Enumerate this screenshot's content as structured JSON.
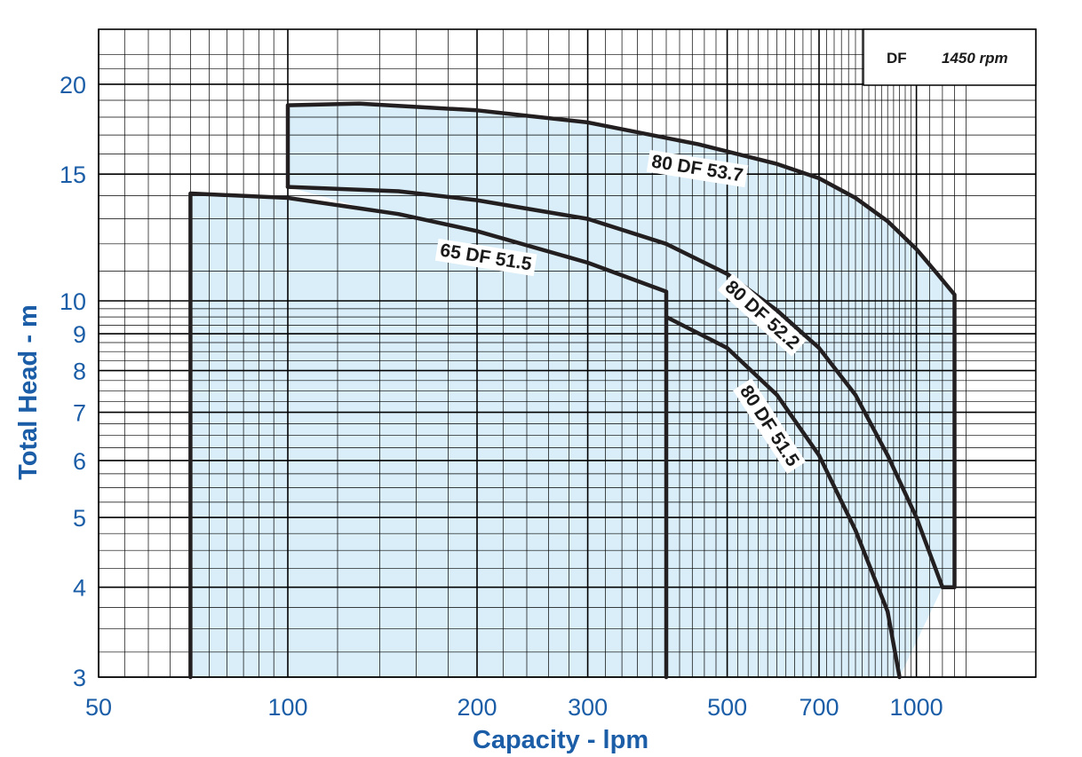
{
  "chart_data": {
    "type": "area",
    "xlabel": "Capacity - lpm",
    "ylabel": "Total Head - m",
    "x_scale": "log",
    "y_scale": "log",
    "xlim": [
      50,
      1200
    ],
    "ylim": [
      3,
      22
    ],
    "x_ticks": [
      {
        "v": 50,
        "label": "50"
      },
      {
        "v": 100,
        "label": "100"
      },
      {
        "v": 200,
        "label": "200"
      },
      {
        "v": 300,
        "label": "300"
      },
      {
        "v": 500,
        "label": "500"
      },
      {
        "v": 700,
        "label": "700"
      },
      {
        "v": 1000,
        "label": "1000"
      }
    ],
    "y_ticks": [
      {
        "v": 3,
        "label": "3"
      },
      {
        "v": 4,
        "label": "4"
      },
      {
        "v": 5,
        "label": "5"
      },
      {
        "v": 6,
        "label": "6"
      },
      {
        "v": 7,
        "label": "7"
      },
      {
        "v": 8,
        "label": "8"
      },
      {
        "v": 9,
        "label": "9"
      },
      {
        "v": 10,
        "label": "10"
      },
      {
        "v": 15,
        "label": "15"
      },
      {
        "v": 20,
        "label": "20"
      }
    ],
    "grid": true,
    "legend": {
      "model": "DF",
      "speed": "1450 rpm",
      "placement": "top-right"
    },
    "colors": {
      "fill": "#d9eef9",
      "curve": "#231f20",
      "grid": "#000000",
      "text": "#1b5ea7"
    },
    "series": [
      {
        "name": "80 DF 53.7",
        "points": [
          [
            100,
            18.7
          ],
          [
            130,
            18.8
          ],
          [
            200,
            18.4
          ],
          [
            300,
            17.7
          ],
          [
            450,
            16.5
          ],
          [
            600,
            15.5
          ],
          [
            700,
            14.8
          ],
          [
            800,
            13.9
          ],
          [
            900,
            12.9
          ],
          [
            1000,
            11.8
          ],
          [
            1080,
            10.9
          ],
          [
            1150,
            10.2
          ]
        ]
      },
      {
        "name": "80 DF 52.2",
        "points": [
          [
            100,
            14.4
          ],
          [
            150,
            14.2
          ],
          [
            200,
            13.8
          ],
          [
            300,
            13.0
          ],
          [
            400,
            12.0
          ],
          [
            500,
            10.9
          ],
          [
            600,
            9.7
          ],
          [
            700,
            8.6
          ],
          [
            800,
            7.4
          ],
          [
            900,
            6.1
          ],
          [
            1000,
            5.0
          ],
          [
            1100,
            4.0
          ]
        ]
      },
      {
        "name": "65 DF 51.5",
        "points": [
          [
            70,
            14.1
          ],
          [
            100,
            13.9
          ],
          [
            150,
            13.2
          ],
          [
            200,
            12.5
          ],
          [
            300,
            11.3
          ],
          [
            400,
            10.3
          ]
        ]
      },
      {
        "name": "80 DF 51.5",
        "points": [
          [
            400,
            9.5
          ],
          [
            500,
            8.6
          ],
          [
            600,
            7.4
          ],
          [
            700,
            6.1
          ],
          [
            800,
            4.8
          ],
          [
            900,
            3.7
          ],
          [
            940,
            3.0
          ]
        ]
      }
    ]
  }
}
